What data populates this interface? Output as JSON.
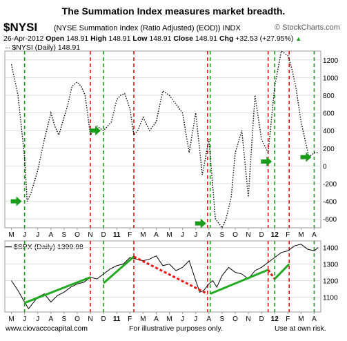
{
  "header": {
    "headline": "The Summation Index measures market breadth.",
    "symbol": "$NYSI",
    "description": "(NYSE Summation Index (Ratio Adjusted) (EOD)) INDX",
    "brand": "© StockCharts.com",
    "date": "26-Apr-2012",
    "open_label": "Open",
    "open": "148.91",
    "high_label": "High",
    "high": "148.91",
    "low_label": "Low",
    "low": "148.91",
    "close_label": "Close",
    "close": "148.91",
    "chg_label": "Chg",
    "chg": "+32.53 (+27.95%)",
    "chg_arrow": "▲"
  },
  "legends": {
    "nysi": "$NYSI (Daily) 148.91",
    "spx": "$SPX (Daily) 1399.98"
  },
  "footer": {
    "site": "www.ciovaccocapital.com",
    "note": "For illustrative purposes only.",
    "risk": "Use at own risk."
  },
  "colors": {
    "line": "#000000",
    "green_marker": "#1a9c1a",
    "red_marker": "#e01010",
    "up_trend": "#22aa22",
    "down_trend": "#ee1111",
    "grid": "#dddddd",
    "axis": "#999999"
  },
  "chart_data": [
    {
      "type": "line",
      "title": "$NYSI (Daily) 148.91",
      "months": [
        "M",
        "J",
        "J",
        "A",
        "S",
        "O",
        "N",
        "D",
        "11",
        "F",
        "M",
        "A",
        "M",
        "J",
        "J",
        "A",
        "S",
        "O",
        "N",
        "D",
        "12",
        "F",
        "M",
        "A"
      ],
      "x": [
        0,
        0.5,
        1,
        1.2,
        1.5,
        2,
        2.5,
        3,
        3.3,
        3.6,
        4,
        4.3,
        4.6,
        5,
        5.3,
        5.6,
        6,
        6.5,
        7,
        7.3,
        7.6,
        8,
        8.3,
        8.6,
        9,
        9.3,
        9.6,
        10,
        10.5,
        11,
        11.5,
        12,
        12.5,
        13,
        13.5,
        14,
        14.5,
        15,
        15.5,
        16,
        16.3,
        16.7,
        17,
        17.5,
        18,
        18.5,
        19,
        19.5,
        20,
        20.5,
        21,
        21.3,
        21.6,
        22,
        22.3,
        22.6,
        23,
        23.3
      ],
      "values": [
        1150,
        800,
        100,
        -400,
        -300,
        -50,
        300,
        600,
        450,
        350,
        550,
        700,
        900,
        950,
        900,
        800,
        350,
        450,
        400,
        450,
        500,
        750,
        800,
        820,
        650,
        350,
        400,
        550,
        400,
        500,
        850,
        800,
        700,
        600,
        150,
        600,
        -100,
        300,
        -600,
        -700,
        -600,
        -350,
        150,
        400,
        -350,
        800,
        300,
        150,
        900,
        1300,
        1250,
        1100,
        900,
        500,
        300,
        100,
        150,
        148.91
      ],
      "ylim": [
        -700,
        1300
      ],
      "yticks": [
        -600,
        -400,
        -200,
        0,
        200,
        400,
        600,
        800,
        1000,
        1200
      ],
      "markers": {
        "green_x": [
          1.0,
          7.0,
          15.1,
          20.0,
          23.0
        ],
        "red_x": [
          6.0,
          9.3,
          14.9,
          19.5,
          21.1
        ]
      },
      "buy_arrows": [
        {
          "x": 1.0,
          "y": -400
        },
        {
          "x": 7.0,
          "y": 400
        },
        {
          "x": 15.0,
          "y": -650
        },
        {
          "x": 20.0,
          "y": 50
        },
        {
          "x": 23.0,
          "y": 100
        }
      ]
    },
    {
      "type": "line",
      "title": "$SPX (Daily) 1399.98",
      "months": [
        "M",
        "J",
        "J",
        "A",
        "S",
        "O",
        "N",
        "D",
        "11",
        "F",
        "M",
        "A",
        "M",
        "J",
        "J",
        "A",
        "S",
        "O",
        "N",
        "D",
        "12",
        "F",
        "M",
        "A"
      ],
      "x": [
        0,
        0.5,
        1,
        1.3,
        1.6,
        2,
        2.5,
        3,
        3.5,
        4,
        4.5,
        5,
        5.5,
        6,
        6.5,
        7,
        7.5,
        8,
        8.5,
        9,
        9.5,
        10,
        10.5,
        11,
        11.5,
        12,
        12.5,
        13,
        13.5,
        14,
        14.3,
        14.6,
        15,
        15.3,
        15.6,
        16,
        16.5,
        17,
        17.5,
        18,
        18.5,
        19,
        19.5,
        20,
        20.5,
        21,
        21.5,
        22,
        22.5,
        23,
        23.3
      ],
      "values": [
        1200,
        1140,
        1070,
        1030,
        1060,
        1100,
        1120,
        1070,
        1110,
        1130,
        1160,
        1180,
        1190,
        1220,
        1210,
        1240,
        1270,
        1290,
        1300,
        1340,
        1330,
        1320,
        1330,
        1350,
        1290,
        1300,
        1260,
        1280,
        1320,
        1200,
        1130,
        1140,
        1180,
        1200,
        1160,
        1230,
        1280,
        1250,
        1240,
        1210,
        1260,
        1280,
        1310,
        1340,
        1370,
        1380,
        1410,
        1420,
        1390,
        1380,
        1399.98
      ],
      "ylim": [
        1010,
        1440
      ],
      "yticks": [
        1100,
        1200,
        1300,
        1400
      ],
      "trendlines": [
        {
          "dir": "up",
          "x": [
            1.0,
            6.0
          ],
          "y": [
            1065,
            1220
          ]
        },
        {
          "dir": "up",
          "x": [
            7.0,
            9.3
          ],
          "y": [
            1185,
            1345
          ]
        },
        {
          "dir": "down",
          "x": [
            9.3,
            14.9
          ],
          "y": [
            1345,
            1120
          ]
        },
        {
          "dir": "up",
          "x": [
            15.1,
            19.5
          ],
          "y": [
            1120,
            1265
          ]
        },
        {
          "dir": "down",
          "x": [
            19.5,
            20.0
          ],
          "y": [
            1265,
            1210
          ]
        },
        {
          "dir": "up",
          "x": [
            20.0,
            21.1
          ],
          "y": [
            1210,
            1300
          ]
        }
      ]
    }
  ]
}
